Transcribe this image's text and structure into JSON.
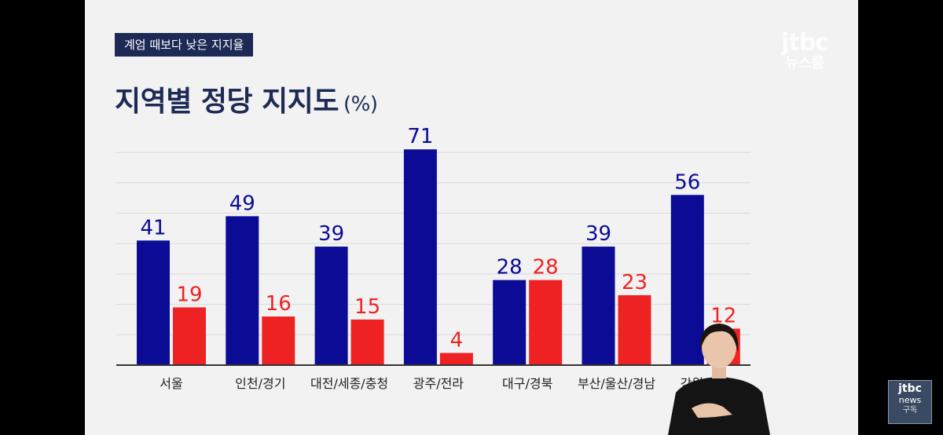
{
  "tag": "계엄 때보다 낮은 지지율",
  "title": "지역별 정당 지지도",
  "unit": "(%)",
  "logo": {
    "brand": "jtbc",
    "sub": "뉴스룸"
  },
  "corner_badge": {
    "line1": "jtbc",
    "line2": "news",
    "line3": "구독"
  },
  "colors": {
    "background": "#f2f2f2",
    "blue": "#0b0b96",
    "red": "#ee2222",
    "title": "#1d2a56"
  },
  "chart_data": {
    "type": "bar",
    "title": "지역별 정당 지지도",
    "categories": [
      "서울",
      "인천/경기",
      "대전/세종/충청",
      "광주/전라",
      "대구/경북",
      "부산/울산/경남",
      "강원/제주"
    ],
    "series": [
      {
        "values": [
          41,
          49,
          39,
          71,
          28,
          39,
          56
        ],
        "color": "#0b0b96"
      },
      {
        "values": [
          19,
          16,
          15,
          4,
          28,
          23,
          12
        ],
        "color": "#ee2222"
      }
    ],
    "ylim": [
      0,
      70
    ],
    "grid": true,
    "legend": "none"
  }
}
